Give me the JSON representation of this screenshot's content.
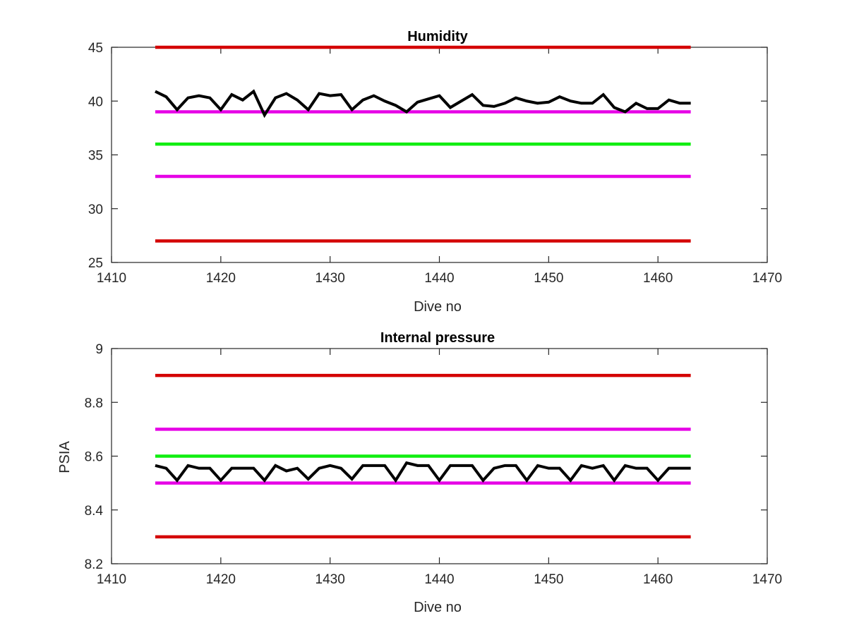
{
  "colors": {
    "red": "#d40000",
    "magenta": "#e600e6",
    "green": "#11ee11",
    "data": "#000000",
    "axis": "#262626"
  },
  "chart_data": [
    {
      "type": "line",
      "title": "Humidity",
      "xlabel": "Dive no",
      "ylabel": "",
      "xlim": [
        1410,
        1470
      ],
      "ylim": [
        25,
        45
      ],
      "xticks": [
        1410,
        1420,
        1430,
        1440,
        1450,
        1460,
        1470
      ],
      "yticks": [
        25,
        30,
        35,
        40,
        45
      ],
      "grid": false,
      "reference_lines": [
        {
          "y": 45,
          "x": [
            1414,
            1463
          ],
          "color": "red"
        },
        {
          "y": 39,
          "x": [
            1414,
            1463
          ],
          "color": "magenta"
        },
        {
          "y": 36,
          "x": [
            1414,
            1463
          ],
          "color": "green"
        },
        {
          "y": 33,
          "x": [
            1414,
            1463
          ],
          "color": "magenta"
        },
        {
          "y": 27,
          "x": [
            1414,
            1463
          ],
          "color": "red"
        }
      ],
      "series": [
        {
          "color": "black",
          "x": [
            1414,
            1415,
            1416,
            1417,
            1418,
            1419,
            1420,
            1421,
            1422,
            1423,
            1424,
            1425,
            1426,
            1427,
            1428,
            1429,
            1430,
            1431,
            1432,
            1433,
            1434,
            1435,
            1436,
            1437,
            1438,
            1439,
            1440,
            1441,
            1442,
            1443,
            1444,
            1445,
            1446,
            1447,
            1448,
            1449,
            1450,
            1451,
            1452,
            1453,
            1454,
            1455,
            1456,
            1457,
            1458,
            1459,
            1460,
            1461,
            1462,
            1463
          ],
          "y": [
            40.9,
            40.4,
            39.2,
            40.3,
            40.5,
            40.3,
            39.2,
            40.6,
            40.1,
            40.9,
            38.7,
            40.3,
            40.7,
            40.1,
            39.2,
            40.7,
            40.5,
            40.6,
            39.2,
            40.1,
            40.5,
            40.0,
            39.6,
            39.0,
            39.9,
            40.2,
            40.5,
            39.4,
            40.0,
            40.6,
            39.6,
            39.5,
            39.8,
            40.3,
            40.0,
            39.8,
            39.9,
            40.4,
            40.0,
            39.8,
            39.8,
            40.6,
            39.4,
            39.0,
            39.8,
            39.3,
            39.3,
            40.1,
            39.8,
            39.8
          ]
        }
      ]
    },
    {
      "type": "line",
      "title": "Internal pressure",
      "xlabel": "Dive no",
      "ylabel": "PSIA",
      "xlim": [
        1410,
        1470
      ],
      "ylim": [
        8.2,
        9.0
      ],
      "xticks": [
        1410,
        1420,
        1430,
        1440,
        1450,
        1460,
        1470
      ],
      "xtick_labels": [
        "1410",
        "1420",
        "1430",
        "1440",
        "1450",
        "1460",
        "1470"
      ],
      "yticks": [
        8.2,
        8.4,
        8.6,
        8.8,
        9.0
      ],
      "ytick_labels": [
        "8.2",
        "8.4",
        "8.6",
        "8.8",
        "9"
      ],
      "grid": false,
      "reference_lines": [
        {
          "y": 8.9,
          "x": [
            1414,
            1463
          ],
          "color": "red"
        },
        {
          "y": 8.7,
          "x": [
            1414,
            1463
          ],
          "color": "magenta"
        },
        {
          "y": 8.6,
          "x": [
            1414,
            1463
          ],
          "color": "green"
        },
        {
          "y": 8.5,
          "x": [
            1414,
            1463
          ],
          "color": "magenta"
        },
        {
          "y": 8.3,
          "x": [
            1414,
            1463
          ],
          "color": "red"
        }
      ],
      "series": [
        {
          "color": "black",
          "x": [
            1414,
            1415,
            1416,
            1417,
            1418,
            1419,
            1420,
            1421,
            1422,
            1423,
            1424,
            1425,
            1426,
            1427,
            1428,
            1429,
            1430,
            1431,
            1432,
            1433,
            1434,
            1435,
            1436,
            1437,
            1438,
            1439,
            1440,
            1441,
            1442,
            1443,
            1444,
            1445,
            1446,
            1447,
            1448,
            1449,
            1450,
            1451,
            1452,
            1453,
            1454,
            1455,
            1456,
            1457,
            1458,
            1459,
            1460,
            1461,
            1462,
            1463
          ],
          "y": [
            8.565,
            8.555,
            8.51,
            8.565,
            8.555,
            8.555,
            8.51,
            8.555,
            8.555,
            8.555,
            8.51,
            8.565,
            8.545,
            8.555,
            8.515,
            8.555,
            8.565,
            8.555,
            8.515,
            8.565,
            8.565,
            8.565,
            8.51,
            8.575,
            8.565,
            8.565,
            8.51,
            8.565,
            8.565,
            8.565,
            8.51,
            8.555,
            8.565,
            8.565,
            8.51,
            8.565,
            8.555,
            8.555,
            8.51,
            8.565,
            8.555,
            8.565,
            8.51,
            8.565,
            8.555,
            8.555,
            8.51,
            8.555,
            8.555,
            8.555
          ]
        }
      ]
    }
  ]
}
